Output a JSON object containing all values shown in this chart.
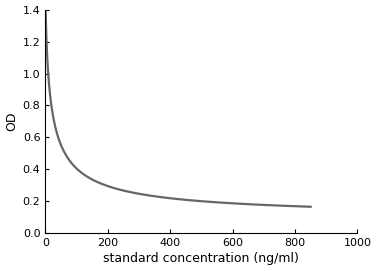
{
  "xlabel": "standard concentration (ng/ml)",
  "ylabel": "OD",
  "xlim": [
    0,
    1000
  ],
  "ylim": [
    0,
    1.4
  ],
  "xticks": [
    0,
    200,
    400,
    600,
    800,
    1000
  ],
  "yticks": [
    0,
    0.2,
    0.4,
    0.6,
    0.8,
    1.0,
    1.2,
    1.4
  ],
  "curve_color": "#666666",
  "curve_linewidth": 1.6,
  "background_color": "#ffffff",
  "y_min": 0.09,
  "y_max": 1.55,
  "ec50": 18.0,
  "hill": 0.75,
  "xlabel_fontsize": 9,
  "ylabel_fontsize": 9,
  "tick_fontsize": 8
}
